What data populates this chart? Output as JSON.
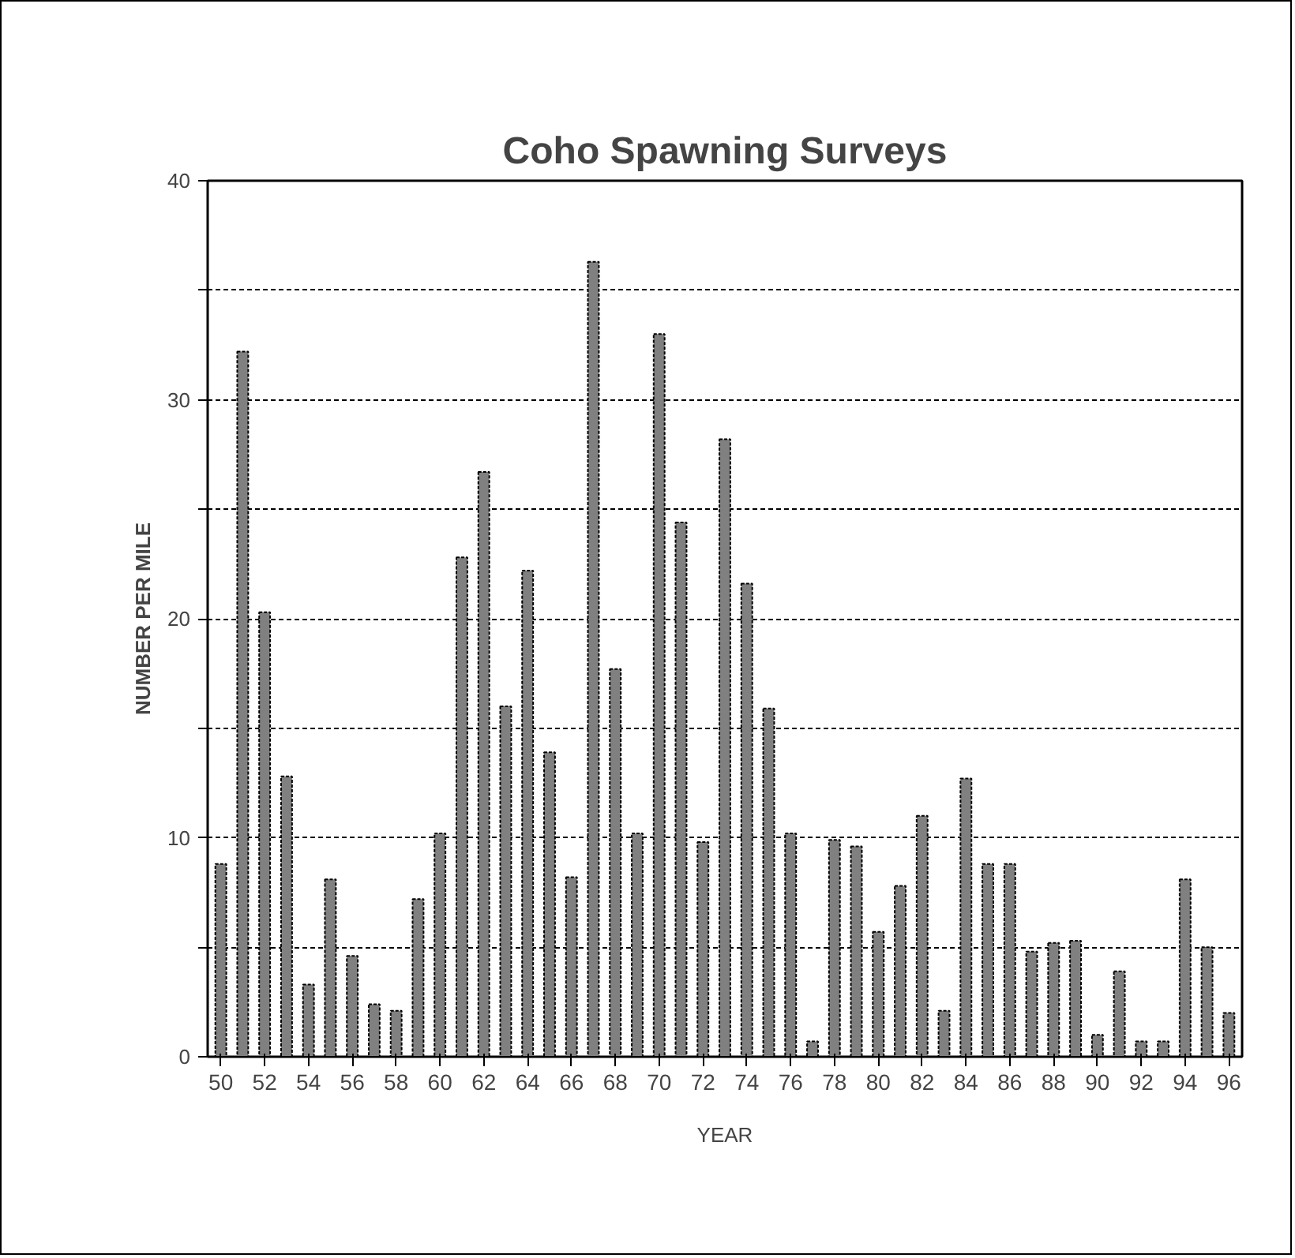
{
  "chart_data": {
    "type": "bar",
    "title": "Coho Spawning Surveys",
    "xlabel": "YEAR",
    "ylabel": "NUMBER PER MILE",
    "categories": [
      "50",
      null,
      "52",
      null,
      "54",
      null,
      "56",
      null,
      "58",
      null,
      "60",
      null,
      "62",
      null,
      "64",
      null,
      "66",
      null,
      "68",
      null,
      "70",
      null,
      "72",
      null,
      "74",
      null,
      "76",
      null,
      "78",
      null,
      "80",
      null,
      "82",
      null,
      "84",
      null,
      "86",
      null,
      "88",
      null,
      "90",
      null,
      "92",
      null,
      "94",
      null,
      "96"
    ],
    "values": [
      8.8,
      32.2,
      20.3,
      12.8,
      3.3,
      8.1,
      4.6,
      2.4,
      2.1,
      7.2,
      10.2,
      22.8,
      26.7,
      16.0,
      22.2,
      13.9,
      8.2,
      36.3,
      17.7,
      10.2,
      33.0,
      24.4,
      9.8,
      28.2,
      21.6,
      15.9,
      10.2,
      0.7,
      9.9,
      9.6,
      5.7,
      7.8,
      11.0,
      2.1,
      12.7,
      8.8,
      8.8,
      4.8,
      5.2,
      5.3,
      1.0,
      3.9,
      0.7,
      0.7,
      8.1,
      5.0,
      2.0
    ],
    "color": "#808080",
    "ylim": [
      0,
      40
    ],
    "yticks": [
      0,
      {
        "value": 5,
        "label": null
      },
      10,
      {
        "value": 15,
        "label": null
      },
      20,
      {
        "value": 25,
        "label": null
      },
      30,
      {
        "value": 35,
        "label": null
      },
      40
    ],
    "grid": "y"
  }
}
